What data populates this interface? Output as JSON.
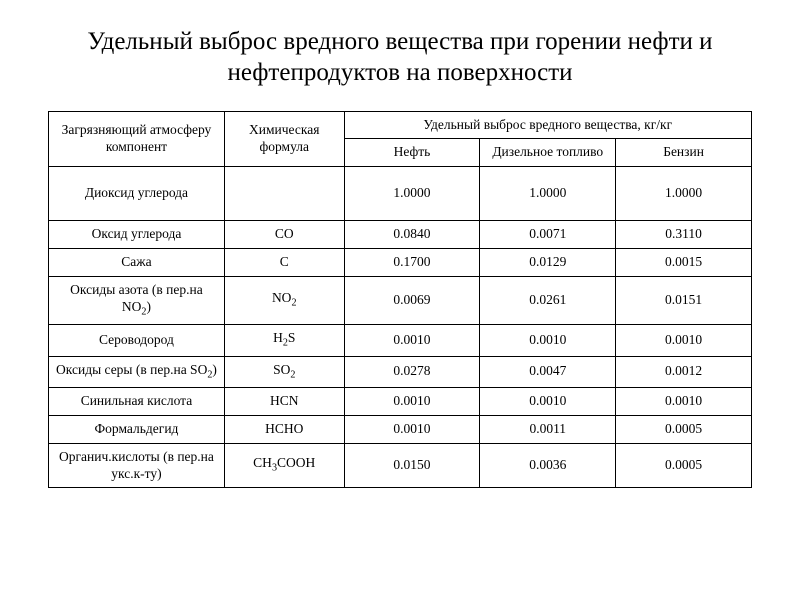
{
  "title": "Удельный выброс вредного вещества при горении нефти и нефтепродуктов на поверхности",
  "table": {
    "header": {
      "component": "Загрязняющий атмосферу компонент",
      "formula": "Химическая формула",
      "group": "Удельный выброс вредного вещества, кг/кг",
      "sub1": "Нефть",
      "sub2": "Дизельное топливо",
      "sub3": "Бензин"
    },
    "rows": [
      {
        "name": "Диоксид углерода",
        "formula": "",
        "v1": "1.0000",
        "v2": "1.0000",
        "v3": "1.0000",
        "tall": true
      },
      {
        "name": "Оксид углерода",
        "formula": "CO",
        "v1": "0.0840",
        "v2": "0.0071",
        "v3": "0.3110"
      },
      {
        "name": "Сажа",
        "formula": "C",
        "v1": "0.1700",
        "v2": "0.0129",
        "v3": "0.0015"
      },
      {
        "name_html": "Оксиды азота (в пер.на NO<sub>2</sub>)",
        "formula_html": "NO<sub>2</sub>",
        "v1": "0.0069",
        "v2": "0.0261",
        "v3": "0.0151"
      },
      {
        "name": "Сероводород",
        "formula_html": "H<sub>2</sub>S",
        "v1": "0.0010",
        "v2": "0.0010",
        "v3": "0.0010"
      },
      {
        "name_html": "Оксиды серы (в пер.на SO<sub>2</sub>)",
        "formula_html": "SO<sub>2</sub>",
        "v1": "0.0278",
        "v2": "0.0047",
        "v3": "0.0012"
      },
      {
        "name": "Синильная кислота",
        "formula": "HCN",
        "v1": "0.0010",
        "v2": "0.0010",
        "v3": "0.0010"
      },
      {
        "name": "Формальдегид",
        "formula": "HCHO",
        "v1": "0.0010",
        "v2": "0.0011",
        "v3": "0.0005"
      },
      {
        "name": "Органич.кислоты (в пер.на укс.к-ту)",
        "formula_html": "CH<sub>3</sub>COOH",
        "v1": "0.0150",
        "v2": "0.0036",
        "v3": "0.0005"
      }
    ]
  },
  "style": {
    "bg": "#ffffff",
    "fg": "#000000",
    "border": "#000000",
    "title_fontsize": 25,
    "cell_fontsize": 13.5,
    "font_family": "Times New Roman"
  }
}
